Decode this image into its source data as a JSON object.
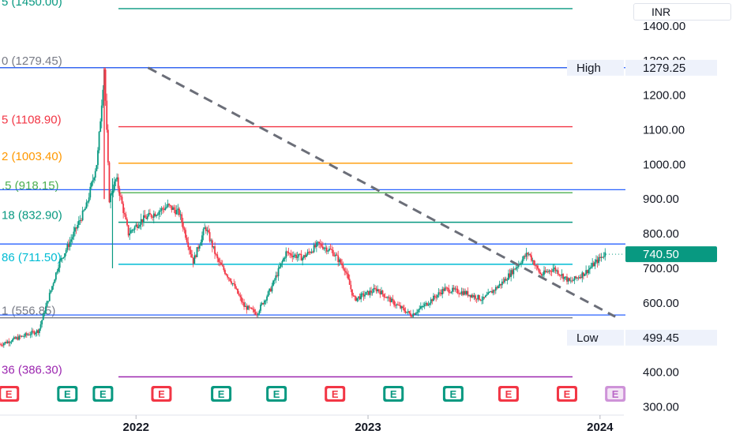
{
  "chart_data": {
    "type": "candlestick",
    "currency": "INR",
    "price_axis": {
      "range": [
        278,
        1475
      ],
      "ticks": [
        "1400.00",
        "1300.00",
        "1200.00",
        "1100.00",
        "1000.00",
        "900.00",
        "800.00",
        "700.00",
        "600.00",
        "400.00",
        "300.00"
      ]
    },
    "time_axis": {
      "range": [
        "2021-06-01",
        "2024-02-05"
      ],
      "labels": [
        {
          "label": "2022",
          "date": "2022-01-01"
        },
        {
          "label": "2023",
          "date": "2023-01-01"
        },
        {
          "label": "2024",
          "date": "2024-01-01"
        }
      ]
    },
    "fib_levels": [
      {
        "label": "5 (1450.00)",
        "price": 1450.0,
        "color": "#089981"
      },
      {
        "label": "0 (1279.45)",
        "price": 1279.45,
        "color": "#787b86"
      },
      {
        "label": "5 (1108.90)",
        "price": 1108.9,
        "color": "#f23645"
      },
      {
        "label": "2 (1003.40)",
        "price": 1003.4,
        "color": "#ff9800"
      },
      {
        "label": ".5 (918.15)",
        "price": 918.15,
        "color": "#4caf50"
      },
      {
        "label": "18 (832.90)",
        "price": 832.9,
        "color": "#089981"
      },
      {
        "label": "86 (711.50)",
        "price": 711.5,
        "color": "#00bcd4"
      },
      {
        "label": "1 (556.85)",
        "price": 556.85,
        "color": "#787b86"
      },
      {
        "label": "36 (386.30)",
        "price": 386.3,
        "color": "#9c27b0"
      }
    ],
    "horizontal_lines": [
      {
        "price": 1279.45,
        "color": "#2962ff"
      },
      {
        "price": 927,
        "color": "#2962ff"
      },
      {
        "price": 770,
        "color": "#2962ff"
      },
      {
        "price": 565,
        "color": "#2962ff"
      }
    ],
    "trend_line": {
      "from": {
        "date": "2022-01-20",
        "price": 1279.45
      },
      "to": {
        "date": "2024-01-25",
        "price": 560
      },
      "style": "dashed",
      "color": "#6b6e78"
    },
    "markers": {
      "high": {
        "label": "High",
        "value": "1279.25",
        "price": 1279.25
      },
      "low": {
        "label": "Low",
        "value": "499.45",
        "price": 499.45
      },
      "last": {
        "value": "740.50",
        "price": 740.5,
        "color": "#089981"
      }
    },
    "earnings_events": [
      {
        "date": "2021-06-15",
        "type": "red",
        "letter": "E"
      },
      {
        "date": "2021-09-15",
        "type": "green",
        "letter": "E"
      },
      {
        "date": "2021-11-10",
        "type": "green",
        "letter": "E"
      },
      {
        "date": "2022-02-10",
        "type": "red",
        "letter": "E"
      },
      {
        "date": "2022-05-15",
        "type": "green",
        "letter": "E"
      },
      {
        "date": "2022-08-10",
        "type": "green",
        "letter": "E"
      },
      {
        "date": "2022-11-10",
        "type": "red",
        "letter": "E"
      },
      {
        "date": "2023-02-10",
        "type": "green",
        "letter": "E"
      },
      {
        "date": "2023-05-15",
        "type": "green",
        "letter": "E"
      },
      {
        "date": "2023-08-10",
        "type": "red",
        "letter": "E"
      },
      {
        "date": "2023-11-10",
        "type": "red",
        "letter": "E"
      },
      {
        "date": "2024-01-25",
        "type": "future",
        "letter": "E"
      }
    ],
    "price_path": [
      [
        "2021-06-01",
        480
      ],
      [
        "2021-07-01",
        500
      ],
      [
        "2021-08-01",
        520
      ],
      [
        "2021-09-01",
        710
      ],
      [
        "2021-09-20",
        780
      ],
      [
        "2021-10-15",
        880
      ],
      [
        "2021-11-01",
        1010
      ],
      [
        "2021-11-12",
        1279
      ],
      [
        "2021-11-20",
        900
      ],
      [
        "2021-12-01",
        960
      ],
      [
        "2021-12-20",
        800
      ],
      [
        "2022-01-10",
        840
      ],
      [
        "2022-02-01",
        860
      ],
      [
        "2022-02-20",
        880
      ],
      [
        "2022-03-10",
        860
      ],
      [
        "2022-04-01",
        720
      ],
      [
        "2022-04-20",
        820
      ],
      [
        "2022-05-10",
        720
      ],
      [
        "2022-06-01",
        660
      ],
      [
        "2022-06-20",
        590
      ],
      [
        "2022-07-10",
        570
      ],
      [
        "2022-08-01",
        640
      ],
      [
        "2022-08-25",
        745
      ],
      [
        "2022-09-20",
        730
      ],
      [
        "2022-10-15",
        770
      ],
      [
        "2022-11-05",
        750
      ],
      [
        "2022-11-25",
        700
      ],
      [
        "2022-12-10",
        610
      ],
      [
        "2023-01-15",
        640
      ],
      [
        "2023-02-10",
        600
      ],
      [
        "2023-03-10",
        565
      ],
      [
        "2023-04-05",
        600
      ],
      [
        "2023-05-01",
        640
      ],
      [
        "2023-06-01",
        630
      ],
      [
        "2023-07-01",
        610
      ],
      [
        "2023-08-01",
        660
      ],
      [
        "2023-08-20",
        700
      ],
      [
        "2023-09-10",
        745
      ],
      [
        "2023-09-30",
        680
      ],
      [
        "2023-10-20",
        700
      ],
      [
        "2023-11-15",
        660
      ],
      [
        "2023-12-10",
        690
      ],
      [
        "2024-01-10",
        745
      ]
    ]
  }
}
